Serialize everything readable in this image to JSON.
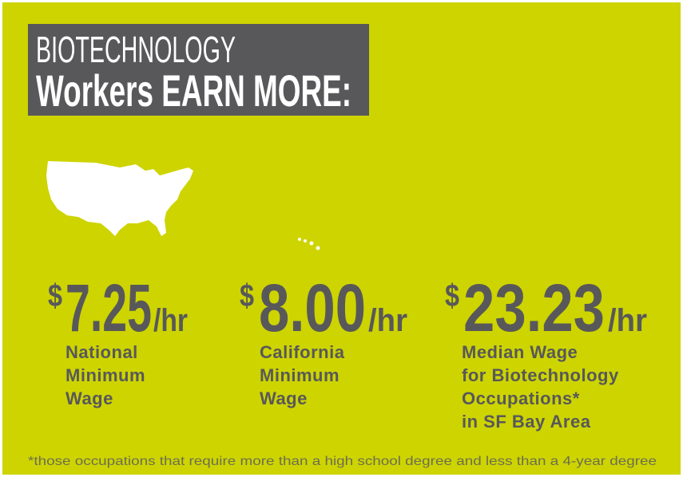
{
  "header": {
    "line1": "BIOTECHNOLOGY",
    "line2": "Workers EARN MORE:"
  },
  "wages": [
    {
      "currency": "$",
      "amount": "7.25",
      "unit": "/hr",
      "description": [
        "National",
        "Minimum",
        "Wage"
      ]
    },
    {
      "currency": "$",
      "amount": "8.00",
      "unit": "/hr",
      "description": [
        "California",
        "Minimum",
        "Wage"
      ]
    },
    {
      "currency": "$",
      "amount": "23.23",
      "unit": "/hr",
      "description": [
        "Median Wage",
        "for Biotechnology",
        "Occupations*",
        "in SF Bay Area"
      ]
    }
  ],
  "footnote": "*those occupations that require more than a high school degree and less than a 4-year degree"
}
